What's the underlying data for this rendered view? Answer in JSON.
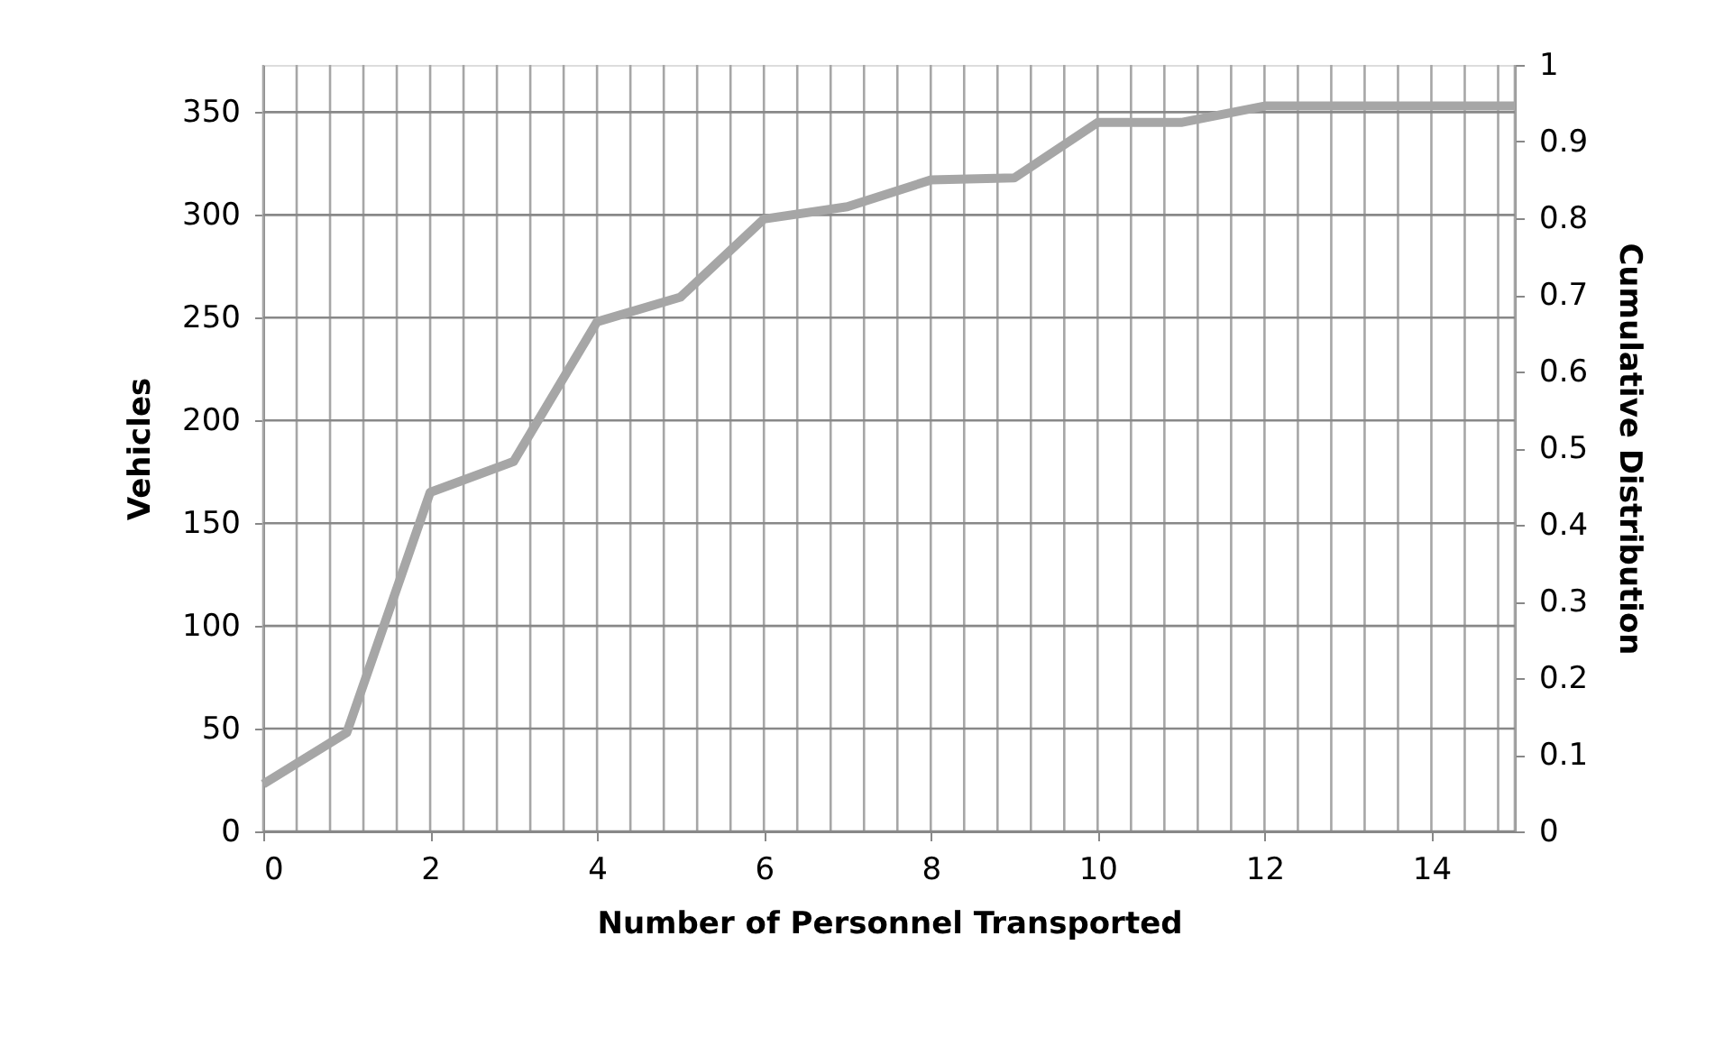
{
  "chart_data": {
    "type": "line",
    "xlabel": "Number of Personnel Transported",
    "ylabel": "Vehicles",
    "y2label": "Cumulative Distribution",
    "x": [
      0,
      1,
      2,
      3,
      4,
      5,
      6,
      7,
      8,
      9,
      10,
      11,
      12,
      13,
      14,
      15
    ],
    "series": [
      {
        "color": "#a6a6a6",
        "values": [
          23,
          48,
          165,
          180,
          248,
          260,
          298,
          304,
          317,
          318,
          345,
          345,
          353,
          353,
          353,
          353
        ]
      }
    ],
    "xlim": [
      0,
      15
    ],
    "xticks": [
      0,
      2,
      4,
      6,
      8,
      10,
      12,
      14
    ],
    "ylim": [
      0,
      373
    ],
    "yticks": [
      0,
      50,
      100,
      150,
      200,
      250,
      300,
      350
    ],
    "y2lim": [
      0,
      1
    ],
    "y2ticks": [
      0,
      0.1,
      0.2,
      0.3,
      0.4,
      0.5,
      0.6,
      0.7,
      0.8,
      0.9,
      1
    ],
    "grid": true,
    "line_style": "solid"
  }
}
